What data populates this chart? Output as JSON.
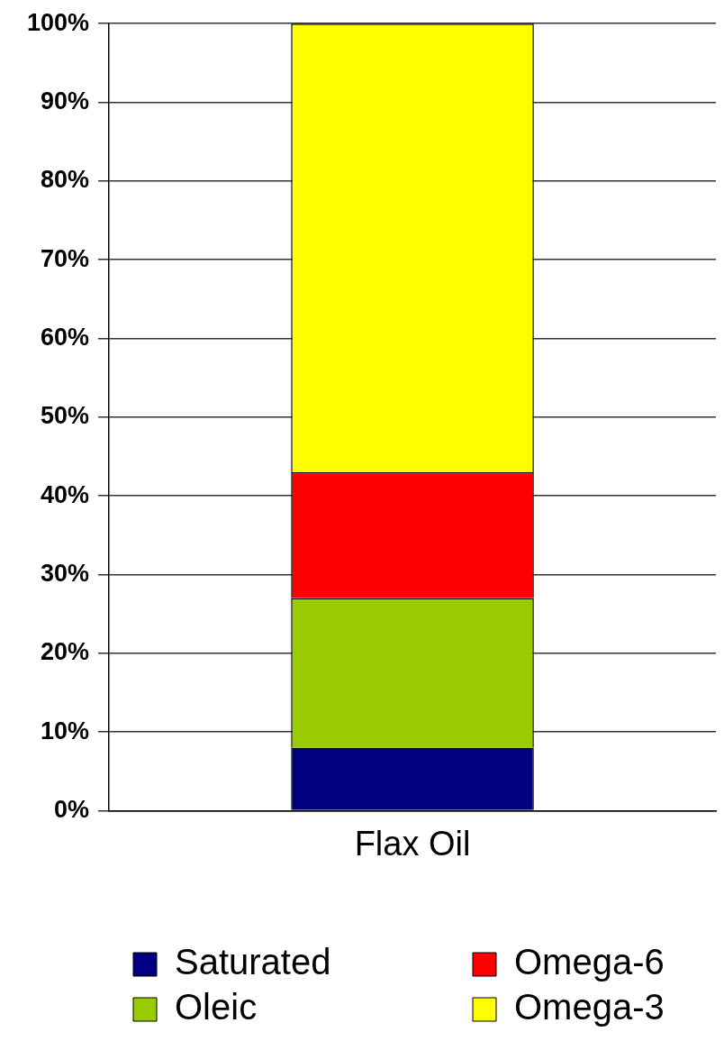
{
  "chart_data": {
    "type": "bar",
    "stacked": true,
    "categories": [
      "Flax Oil"
    ],
    "series": [
      {
        "name": "Saturated",
        "color": "#000080",
        "values": [
          8
        ]
      },
      {
        "name": "Oleic",
        "color": "#99cc00",
        "values": [
          19
        ]
      },
      {
        "name": "Omega-6",
        "color": "#ff0000",
        "values": [
          16
        ]
      },
      {
        "name": "Omega-3",
        "color": "#ffff00",
        "values": [
          57
        ]
      }
    ],
    "ylim": [
      0,
      100
    ],
    "yticks": [
      {
        "value": 0,
        "label": "0%"
      },
      {
        "value": 10,
        "label": "10%"
      },
      {
        "value": 20,
        "label": "20%"
      },
      {
        "value": 30,
        "label": "30%"
      },
      {
        "value": 40,
        "label": "40%"
      },
      {
        "value": 50,
        "label": "50%"
      },
      {
        "value": 60,
        "label": "60%"
      },
      {
        "value": 70,
        "label": "70%"
      },
      {
        "value": 80,
        "label": "80%"
      },
      {
        "value": 90,
        "label": "90%"
      },
      {
        "value": 100,
        "label": "100%"
      }
    ],
    "grid": "y",
    "legend": "bottom"
  }
}
